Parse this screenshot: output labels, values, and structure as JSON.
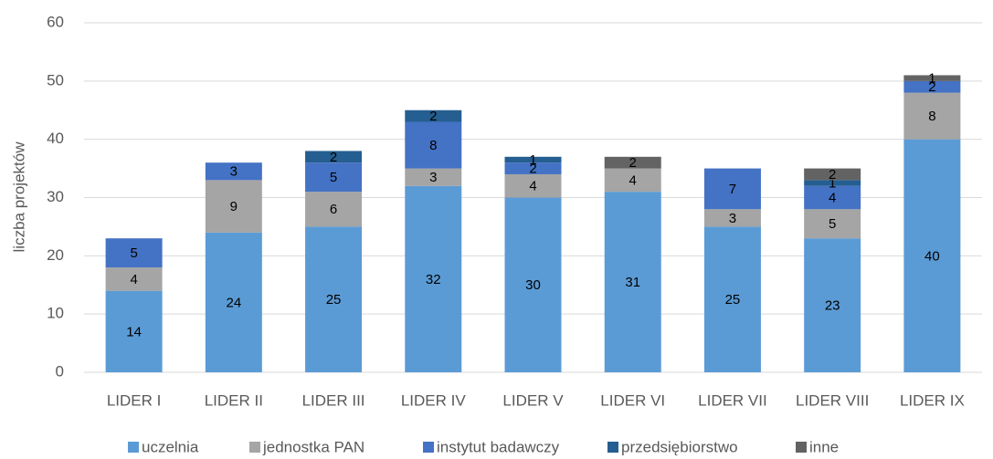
{
  "chart_data": {
    "type": "bar",
    "stacked": true,
    "y_label": "liczba projektów",
    "categories": [
      "LIDER I",
      "LIDER II",
      "LIDER III",
      "LIDER IV",
      "LIDER V",
      "LIDER VI",
      "LIDER VII",
      "LIDER VIII",
      "LIDER IX"
    ],
    "series": [
      {
        "name": "uczelnia",
        "color": "#5b9bd5",
        "values": [
          14,
          24,
          25,
          32,
          30,
          31,
          25,
          23,
          40
        ]
      },
      {
        "name": "jednostka PAN",
        "color": "#a5a5a5",
        "values": [
          4,
          9,
          6,
          3,
          4,
          4,
          3,
          5,
          8
        ]
      },
      {
        "name": "instytut badawczy",
        "color": "#4472c4",
        "values": [
          5,
          3,
          5,
          8,
          2,
          null,
          7,
          4,
          2
        ]
      },
      {
        "name": "przedsiębiorstwo",
        "color": "#255e91",
        "values": [
          null,
          null,
          2,
          2,
          1,
          null,
          null,
          1,
          null
        ]
      },
      {
        "name": "inne",
        "color": "#636363",
        "values": [
          null,
          null,
          null,
          null,
          null,
          2,
          null,
          2,
          1
        ]
      }
    ],
    "ylim": [
      0,
      60
    ],
    "yticks": [
      0,
      10,
      20,
      30,
      40,
      50,
      60
    ],
    "grid": true,
    "legend": "bottom"
  }
}
